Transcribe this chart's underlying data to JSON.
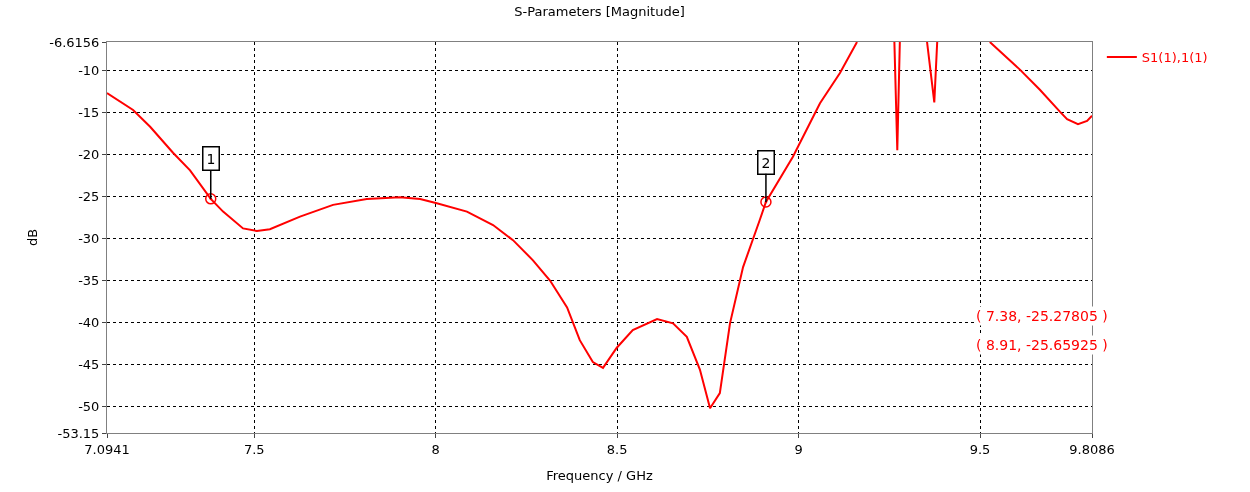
{
  "chart_data": {
    "type": "line",
    "title": "S-Parameters [Magnitude]",
    "xlabel": "Frequency / GHz",
    "ylabel": "dB",
    "xlim": [
      7.0941,
      9.8086
    ],
    "xticks": [
      7.0941,
      7.5,
      8,
      8.5,
      9,
      9.5,
      9.8086
    ],
    "ylim": [
      -53.15,
      -6.6156
    ],
    "yticks": [
      -6.6156,
      -10,
      -15,
      -20,
      -25,
      -30,
      -35,
      -40,
      -45,
      -50,
      -53.15
    ],
    "grid": true,
    "legend": "top right",
    "line_style": "solid",
    "marker": "none",
    "series": [
      {
        "name": "S1(1),1(1)",
        "color": "#ff0000",
        "x": [
          7.0941,
          7.166,
          7.213,
          7.276,
          7.323,
          7.38,
          7.414,
          7.469,
          7.507,
          7.543,
          7.626,
          7.717,
          7.81,
          7.901,
          7.957,
          8.003,
          8.086,
          8.158,
          8.213,
          8.268,
          8.315,
          8.362,
          8.397,
          8.433,
          8.461,
          8.499,
          8.543,
          8.61,
          8.654,
          8.692,
          8.728,
          8.756,
          8.783,
          8.811,
          8.847,
          8.893,
          8.91,
          8.984,
          9.059,
          9.114,
          9.161,
          9.2,
          9.264,
          9.272,
          9.279,
          9.32,
          9.354,
          9.374,
          9.382,
          9.45,
          9.527,
          9.61,
          9.665,
          9.72,
          9.74,
          9.77,
          9.795,
          9.8086
        ],
        "values": [
          -12.7,
          -14.7,
          -16.7,
          -19.8,
          -21.9,
          -25.28,
          -26.8,
          -28.8,
          -29.1,
          -28.9,
          -27.4,
          -26.0,
          -25.3,
          -25.1,
          -25.3,
          -25.8,
          -26.8,
          -28.4,
          -30.2,
          -32.6,
          -35.0,
          -38.2,
          -42.1,
          -44.7,
          -45.4,
          -43.0,
          -40.9,
          -39.6,
          -40.1,
          -41.7,
          -45.6,
          -50.2,
          -48.4,
          -40.1,
          -33.4,
          -27.8,
          -25.66,
          -20.3,
          -13.9,
          -10.3,
          -6.6156,
          null,
          -6.6156,
          -19.5,
          -6.6156,
          null,
          -6.6156,
          -13.8,
          -6.6156,
          null,
          -6.6156,
          -9.9,
          -12.3,
          -14.9,
          -15.8,
          -16.4,
          -16.0,
          -15.4
        ]
      },
      {
        "type": "scatter",
        "marker": "circle",
        "color": "#ff0000",
        "x": [
          7.38,
          8.91
        ],
        "values": [
          -25.27805,
          -25.65925
        ]
      }
    ],
    "annotations": [
      {
        "text": "1",
        "x": 7.38,
        "y": -25.27805
      },
      {
        "text": "2",
        "x": 8.91,
        "y": -25.65925
      },
      "( 7.38, -25.27805 )",
      "( 8.91, -25.65925 )"
    ]
  }
}
